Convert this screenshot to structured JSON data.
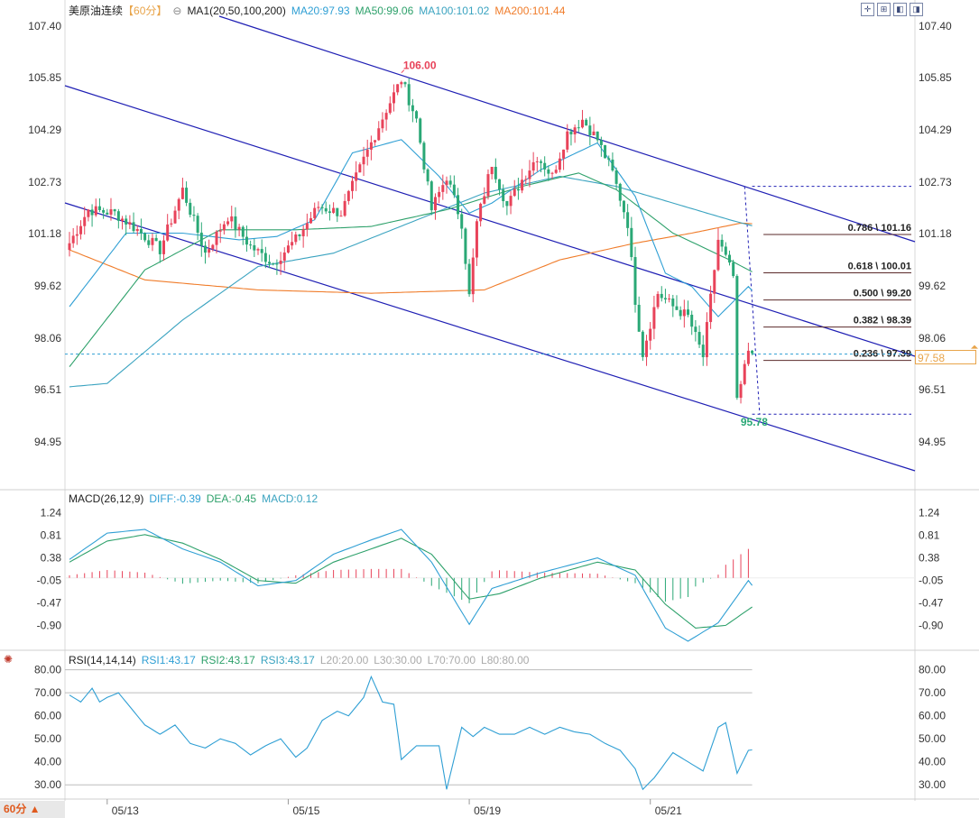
{
  "header": {
    "symbol": "美原油连续",
    "period_tag": "【60分】",
    "ma_label": "MA1(20,50,100,200)",
    "ma20": "MA20:97.93",
    "ma50": "MA50:99.06",
    "ma100": "MA100:101.02",
    "ma200": "MA200:101.44",
    "macd_label": "MACD(26,12,9)",
    "diff": "DIFF:-0.39",
    "dea": "DEA:-0.45",
    "macd": "MACD:0.12",
    "rsi_label": "RSI(14,14,14)",
    "rsi1": "RSI1:43.17",
    "rsi2": "RSI2:43.17",
    "rsi3": "RSI3:43.17",
    "l20": "L20:20.00",
    "l30": "L30:30.00",
    "l70": "L70:70.00",
    "l80": "L80:80.00"
  },
  "toolbar": {
    "icons": [
      "crosshair-icon",
      "fit-icon",
      "prev-icon",
      "next-icon"
    ]
  },
  "current_price": "97.58",
  "period_button": "60分 ▲",
  "colors": {
    "up": "#e8435a",
    "down": "#2aa876",
    "ma20": "#2f9fd4",
    "ma50": "#2ea16b",
    "ma100": "#3aa3c0",
    "ma200": "#f07c2a",
    "channel": "#1f1fb4",
    "diff": "#2f9fd4",
    "dea": "#2ea16b",
    "rsi": "#2f9fd4"
  },
  "chart_data": [
    {
      "type": "candlestick",
      "name": "price",
      "y_ticks": [
        "107.40",
        "105.85",
        "104.29",
        "102.73",
        "101.18",
        "99.62",
        "98.06",
        "96.51",
        "94.95"
      ],
      "ylim": [
        93.6,
        107.8
      ],
      "x_labels": [
        {
          "label": "05/13",
          "bar": 10
        },
        {
          "label": "05/15",
          "bar": 58
        },
        {
          "label": "05/19",
          "bar": 106
        },
        {
          "label": "05/21",
          "bar": 154
        }
      ],
      "high_label": "106.00",
      "low_label": "95.78",
      "fib_levels": [
        {
          "ratio": "0.786",
          "price": "101.16",
          "text": "0.786 \\ 101.16"
        },
        {
          "ratio": "0.618",
          "price": "100.01",
          "text": "0.618 \\ 100.01"
        },
        {
          "ratio": "0.500",
          "price": "99.20",
          "text": "0.500 \\ 99.20"
        },
        {
          "ratio": "0.382",
          "price": "98.39",
          "text": "0.382 \\ 98.39"
        },
        {
          "ratio": "0.236",
          "price": "97.39",
          "text": "0.236 \\ 97.39"
        }
      ],
      "fib_range": {
        "high": 102.6,
        "low": 95.78
      },
      "current": 97.58,
      "anchors": [
        [
          0,
          100.9
        ],
        [
          5,
          101.9
        ],
        [
          12,
          101.8
        ],
        [
          18,
          101.3
        ],
        [
          24,
          100.7
        ],
        [
          30,
          102.5
        ],
        [
          36,
          100.6
        ],
        [
          42,
          101.7
        ],
        [
          48,
          100.8
        ],
        [
          54,
          100.3
        ],
        [
          60,
          101.0
        ],
        [
          66,
          102.0
        ],
        [
          72,
          101.8
        ],
        [
          78,
          103.4
        ],
        [
          84,
          104.9
        ],
        [
          88,
          105.8
        ],
        [
          92,
          104.6
        ],
        [
          96,
          101.9
        ],
        [
          100,
          102.9
        ],
        [
          104,
          101.5
        ],
        [
          106,
          99.3
        ],
        [
          108,
          101.5
        ],
        [
          112,
          103.3
        ],
        [
          116,
          102.0
        ],
        [
          120,
          102.8
        ],
        [
          124,
          103.5
        ],
        [
          128,
          102.9
        ],
        [
          132,
          104.2
        ],
        [
          136,
          104.6
        ],
        [
          140,
          104.0
        ],
        [
          144,
          103.0
        ],
        [
          148,
          101.5
        ],
        [
          150,
          99.2
        ],
        [
          152,
          97.6
        ],
        [
          156,
          99.4
        ],
        [
          160,
          99.0
        ],
        [
          164,
          98.7
        ],
        [
          168,
          97.5
        ],
        [
          172,
          101.0
        ],
        [
          176,
          99.9
        ],
        [
          177,
          96.1
        ],
        [
          180,
          97.7
        ],
        [
          184,
          97.9
        ],
        [
          188,
          97.5
        ],
        [
          192,
          98.2
        ],
        [
          196,
          98.5
        ],
        [
          198,
          97.4
        ]
      ],
      "ma200_anchors": [
        [
          0,
          100.7
        ],
        [
          20,
          99.8
        ],
        [
          50,
          99.5
        ],
        [
          80,
          99.4
        ],
        [
          110,
          99.5
        ],
        [
          130,
          100.4
        ],
        [
          150,
          100.9
        ],
        [
          165,
          101.2
        ],
        [
          178,
          101.5
        ],
        [
          195,
          101.4
        ]
      ],
      "ma100_anchors": [
        [
          0,
          96.6
        ],
        [
          10,
          96.7
        ],
        [
          30,
          98.6
        ],
        [
          50,
          100.2
        ],
        [
          70,
          100.6
        ],
        [
          90,
          101.5
        ],
        [
          110,
          102.4
        ],
        [
          130,
          102.9
        ],
        [
          145,
          102.6
        ],
        [
          160,
          102.1
        ],
        [
          175,
          101.6
        ],
        [
          195,
          101.0
        ]
      ],
      "ma50_anchors": [
        [
          0,
          97.2
        ],
        [
          20,
          100.1
        ],
        [
          40,
          101.3
        ],
        [
          60,
          101.3
        ],
        [
          80,
          101.4
        ],
        [
          100,
          101.9
        ],
        [
          120,
          102.6
        ],
        [
          135,
          103.0
        ],
        [
          145,
          102.5
        ],
        [
          160,
          101.2
        ],
        [
          175,
          100.4
        ],
        [
          185,
          99.8
        ],
        [
          198,
          99.1
        ]
      ],
      "ma20_anchors": [
        [
          0,
          99.0
        ],
        [
          15,
          101.2
        ],
        [
          30,
          101.2
        ],
        [
          45,
          101.0
        ],
        [
          55,
          101.1
        ],
        [
          65,
          101.6
        ],
        [
          75,
          103.6
        ],
        [
          88,
          104.0
        ],
        [
          98,
          102.9
        ],
        [
          106,
          101.8
        ],
        [
          112,
          102.1
        ],
        [
          125,
          103.1
        ],
        [
          140,
          103.9
        ],
        [
          150,
          102.3
        ],
        [
          158,
          100.0
        ],
        [
          165,
          99.6
        ],
        [
          172,
          98.7
        ],
        [
          180,
          99.6
        ],
        [
          190,
          98.4
        ],
        [
          198,
          97.9
        ]
      ]
    },
    {
      "type": "macd",
      "name": "MACD",
      "y_ticks": [
        "1.24",
        "0.81",
        "0.38",
        "-0.05",
        "-0.47",
        "-0.90"
      ],
      "ylim": [
        -1.32,
        1.45
      ],
      "diff_anchors": [
        [
          0,
          0.35
        ],
        [
          10,
          0.85
        ],
        [
          20,
          0.92
        ],
        [
          30,
          0.55
        ],
        [
          40,
          0.3
        ],
        [
          50,
          -0.15
        ],
        [
          60,
          -0.05
        ],
        [
          70,
          0.45
        ],
        [
          80,
          0.72
        ],
        [
          88,
          0.92
        ],
        [
          96,
          0.3
        ],
        [
          106,
          -0.88
        ],
        [
          112,
          -0.2
        ],
        [
          125,
          0.1
        ],
        [
          140,
          0.38
        ],
        [
          150,
          0.05
        ],
        [
          158,
          -0.95
        ],
        [
          164,
          -1.2
        ],
        [
          172,
          -0.85
        ],
        [
          180,
          -0.05
        ],
        [
          186,
          -0.6
        ],
        [
          192,
          -0.55
        ],
        [
          198,
          -0.39
        ]
      ],
      "dea_anchors": [
        [
          0,
          0.3
        ],
        [
          10,
          0.7
        ],
        [
          20,
          0.82
        ],
        [
          30,
          0.66
        ],
        [
          40,
          0.35
        ],
        [
          50,
          -0.05
        ],
        [
          60,
          -0.1
        ],
        [
          70,
          0.3
        ],
        [
          80,
          0.55
        ],
        [
          88,
          0.75
        ],
        [
          96,
          0.45
        ],
        [
          106,
          -0.4
        ],
        [
          114,
          -0.3
        ],
        [
          125,
          0.0
        ],
        [
          140,
          0.3
        ],
        [
          150,
          0.15
        ],
        [
          158,
          -0.5
        ],
        [
          166,
          -0.95
        ],
        [
          174,
          -0.9
        ],
        [
          182,
          -0.5
        ],
        [
          190,
          -0.55
        ],
        [
          198,
          -0.45
        ]
      ]
    },
    {
      "type": "line",
      "name": "RSI",
      "y_ticks": [
        "80.00",
        "70.00",
        "60.00",
        "50.00",
        "40.00",
        "30.00"
      ],
      "ylim": [
        25.0,
        83.0
      ],
      "levels": [
        30,
        70,
        80
      ],
      "rsi_anchors": [
        [
          0,
          69
        ],
        [
          3,
          66
        ],
        [
          6,
          72
        ],
        [
          8,
          66
        ],
        [
          10,
          68
        ],
        [
          13,
          70
        ],
        [
          16,
          64
        ],
        [
          20,
          56
        ],
        [
          24,
          52
        ],
        [
          28,
          56
        ],
        [
          32,
          48
        ],
        [
          36,
          46
        ],
        [
          40,
          50
        ],
        [
          44,
          48
        ],
        [
          48,
          43
        ],
        [
          52,
          47
        ],
        [
          56,
          50
        ],
        [
          60,
          42
        ],
        [
          63,
          46
        ],
        [
          67,
          58
        ],
        [
          71,
          62
        ],
        [
          74,
          60
        ],
        [
          78,
          68
        ],
        [
          80,
          77
        ],
        [
          83,
          66
        ],
        [
          86,
          65
        ],
        [
          88,
          41
        ],
        [
          92,
          47
        ],
        [
          96,
          47
        ],
        [
          98,
          47
        ],
        [
          100,
          28
        ],
        [
          104,
          55
        ],
        [
          107,
          51
        ],
        [
          110,
          55
        ],
        [
          114,
          52
        ],
        [
          118,
          52
        ],
        [
          122,
          55
        ],
        [
          126,
          52
        ],
        [
          130,
          55
        ],
        [
          134,
          53
        ],
        [
          138,
          52
        ],
        [
          142,
          48
        ],
        [
          146,
          45
        ],
        [
          150,
          37
        ],
        [
          152,
          28
        ],
        [
          155,
          33
        ],
        [
          160,
          44
        ],
        [
          164,
          40
        ],
        [
          168,
          36
        ],
        [
          172,
          55
        ],
        [
          174,
          57
        ],
        [
          177,
          35
        ],
        [
          180,
          45
        ],
        [
          186,
          46
        ],
        [
          190,
          45
        ],
        [
          194,
          52
        ],
        [
          198,
          43
        ]
      ]
    }
  ]
}
